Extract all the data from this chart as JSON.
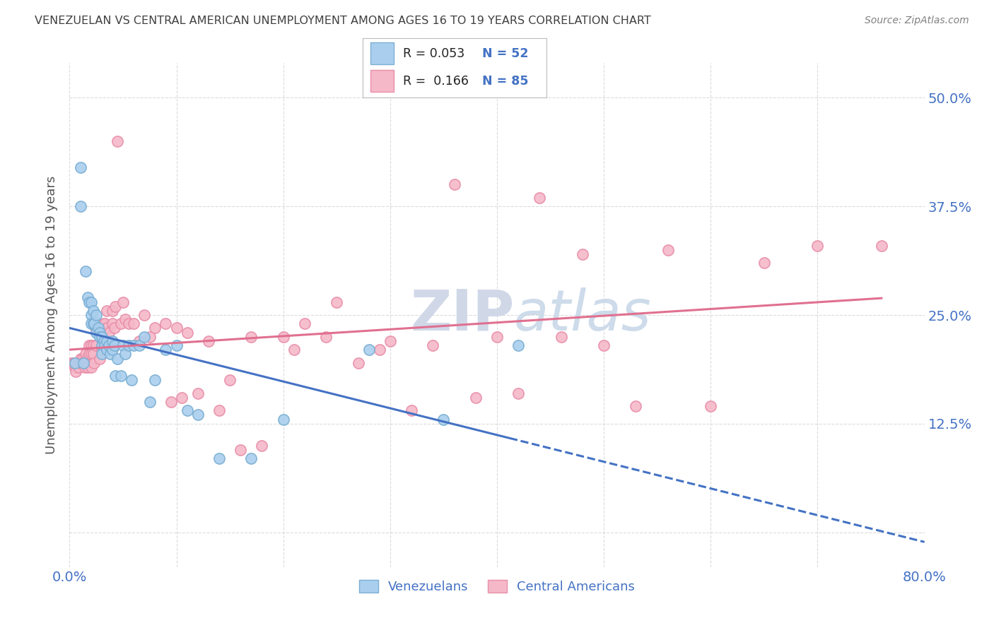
{
  "title": "VENEZUELAN VS CENTRAL AMERICAN UNEMPLOYMENT AMONG AGES 16 TO 19 YEARS CORRELATION CHART",
  "source": "Source: ZipAtlas.com",
  "ylabel": "Unemployment Among Ages 16 to 19 years",
  "yticks": [
    0.0,
    0.125,
    0.25,
    0.375,
    0.5
  ],
  "ytick_labels": [
    "",
    "12.5%",
    "25.0%",
    "37.5%",
    "50.0%"
  ],
  "xlim": [
    0.0,
    0.8
  ],
  "ylim": [
    -0.04,
    0.54
  ],
  "legend_R_blue": "R = 0.053",
  "legend_N_blue": "N = 52",
  "legend_R_pink": "R =  0.166",
  "legend_N_pink": "N = 85",
  "blue_fill": "#AACFEE",
  "pink_fill": "#F5B8C8",
  "blue_edge": "#7BAFD4",
  "pink_edge": "#E88FAA",
  "blue_line": "#4472C4",
  "pink_line": "#E07090",
  "title_color": "#404040",
  "axis_label_color": "#4472C4",
  "source_color": "#808080",
  "grid_color": "#CCCCCC",
  "watermark_color": "#D0D8E8",
  "venezuelan_x": [
    0.005,
    0.01,
    0.01,
    0.013,
    0.015,
    0.017,
    0.018,
    0.02,
    0.02,
    0.02,
    0.022,
    0.022,
    0.023,
    0.025,
    0.025,
    0.027,
    0.028,
    0.028,
    0.03,
    0.03,
    0.03,
    0.032,
    0.033,
    0.035,
    0.035,
    0.037,
    0.038,
    0.04,
    0.04,
    0.042,
    0.043,
    0.045,
    0.048,
    0.05,
    0.052,
    0.055,
    0.058,
    0.06,
    0.065,
    0.07,
    0.075,
    0.08,
    0.09,
    0.1,
    0.11,
    0.12,
    0.14,
    0.17,
    0.2,
    0.28,
    0.35,
    0.42
  ],
  "venezuelan_y": [
    0.195,
    0.42,
    0.375,
    0.195,
    0.3,
    0.27,
    0.265,
    0.265,
    0.25,
    0.24,
    0.255,
    0.24,
    0.24,
    0.25,
    0.23,
    0.235,
    0.23,
    0.225,
    0.225,
    0.215,
    0.205,
    0.22,
    0.215,
    0.22,
    0.21,
    0.215,
    0.205,
    0.22,
    0.21,
    0.215,
    0.18,
    0.2,
    0.18,
    0.215,
    0.205,
    0.215,
    0.175,
    0.215,
    0.215,
    0.225,
    0.15,
    0.175,
    0.21,
    0.215,
    0.14,
    0.135,
    0.085,
    0.085,
    0.13,
    0.21,
    0.13,
    0.215
  ],
  "central_x": [
    0.002,
    0.004,
    0.005,
    0.006,
    0.008,
    0.01,
    0.01,
    0.012,
    0.012,
    0.013,
    0.014,
    0.015,
    0.015,
    0.016,
    0.017,
    0.018,
    0.018,
    0.02,
    0.02,
    0.02,
    0.022,
    0.022,
    0.023,
    0.024,
    0.025,
    0.025,
    0.027,
    0.028,
    0.03,
    0.03,
    0.032,
    0.033,
    0.035,
    0.035,
    0.037,
    0.04,
    0.04,
    0.042,
    0.043,
    0.045,
    0.048,
    0.05,
    0.052,
    0.055,
    0.06,
    0.065,
    0.07,
    0.075,
    0.08,
    0.09,
    0.095,
    0.1,
    0.105,
    0.11,
    0.12,
    0.13,
    0.14,
    0.15,
    0.16,
    0.17,
    0.18,
    0.2,
    0.21,
    0.22,
    0.24,
    0.25,
    0.27,
    0.29,
    0.3,
    0.32,
    0.34,
    0.36,
    0.38,
    0.4,
    0.42,
    0.44,
    0.46,
    0.48,
    0.5,
    0.53,
    0.56,
    0.6,
    0.65,
    0.7,
    0.76
  ],
  "central_y": [
    0.195,
    0.195,
    0.19,
    0.185,
    0.19,
    0.2,
    0.195,
    0.2,
    0.195,
    0.195,
    0.19,
    0.205,
    0.195,
    0.2,
    0.19,
    0.215,
    0.205,
    0.215,
    0.205,
    0.19,
    0.215,
    0.205,
    0.195,
    0.235,
    0.24,
    0.215,
    0.235,
    0.2,
    0.225,
    0.21,
    0.24,
    0.24,
    0.255,
    0.235,
    0.23,
    0.255,
    0.24,
    0.235,
    0.26,
    0.45,
    0.24,
    0.265,
    0.245,
    0.24,
    0.24,
    0.22,
    0.25,
    0.225,
    0.235,
    0.24,
    0.15,
    0.235,
    0.155,
    0.23,
    0.16,
    0.22,
    0.14,
    0.175,
    0.095,
    0.225,
    0.1,
    0.225,
    0.21,
    0.24,
    0.225,
    0.265,
    0.195,
    0.21,
    0.22,
    0.14,
    0.215,
    0.4,
    0.155,
    0.225,
    0.16,
    0.385,
    0.225,
    0.32,
    0.215,
    0.145,
    0.325,
    0.145,
    0.31,
    0.33,
    0.33
  ]
}
